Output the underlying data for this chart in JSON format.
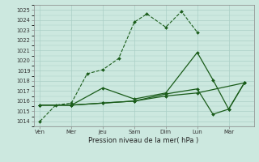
{
  "xlabel": "Pression niveau de la mer( hPa )",
  "x_labels": [
    "Ven",
    "Mer",
    "Jeu",
    "Sam",
    "Dim",
    "Lun",
    "Mar"
  ],
  "ylim": [
    1013.5,
    1025.5
  ],
  "yticks": [
    1014,
    1015,
    1016,
    1017,
    1018,
    1019,
    1020,
    1021,
    1022,
    1023,
    1024,
    1025
  ],
  "bg_color": "#cce8df",
  "grid_color": "#aacfc6",
  "line_color": "#1a5c1a",
  "figsize": [
    3.2,
    2.0
  ],
  "dpi": 100,
  "series": [
    {
      "x": [
        0,
        0.5,
        1.0,
        1.5,
        2.0,
        2.5,
        3.0,
        3.4,
        4.0,
        4.5,
        5.0
      ],
      "y": [
        1014.0,
        1015.6,
        1015.8,
        1018.7,
        1019.1,
        1020.2,
        1023.8,
        1024.6,
        1023.3,
        1024.85,
        1022.8
      ],
      "linestyle": "--",
      "linewidth": 0.8,
      "markersize": 2.0
    },
    {
      "x": [
        0,
        1,
        2,
        3,
        4,
        5,
        5.5,
        6.0,
        6.5
      ],
      "y": [
        1015.6,
        1015.6,
        1017.3,
        1016.2,
        1016.8,
        1020.8,
        1018.1,
        1015.2,
        1017.8
      ],
      "linestyle": "-",
      "linewidth": 0.9,
      "markersize": 2.0
    },
    {
      "x": [
        0,
        1,
        2,
        3,
        4,
        5,
        5.5,
        6.0,
        6.5
      ],
      "y": [
        1015.6,
        1015.6,
        1015.8,
        1016.0,
        1016.7,
        1017.2,
        1014.7,
        1015.2,
        1017.8
      ],
      "linestyle": "-",
      "linewidth": 0.9,
      "markersize": 2.0
    },
    {
      "x": [
        0,
        1,
        2,
        3,
        4,
        5,
        6.5
      ],
      "y": [
        1015.6,
        1015.6,
        1015.8,
        1016.0,
        1016.5,
        1016.8,
        1017.8
      ],
      "linestyle": "-",
      "linewidth": 0.9,
      "markersize": 2.0
    }
  ]
}
